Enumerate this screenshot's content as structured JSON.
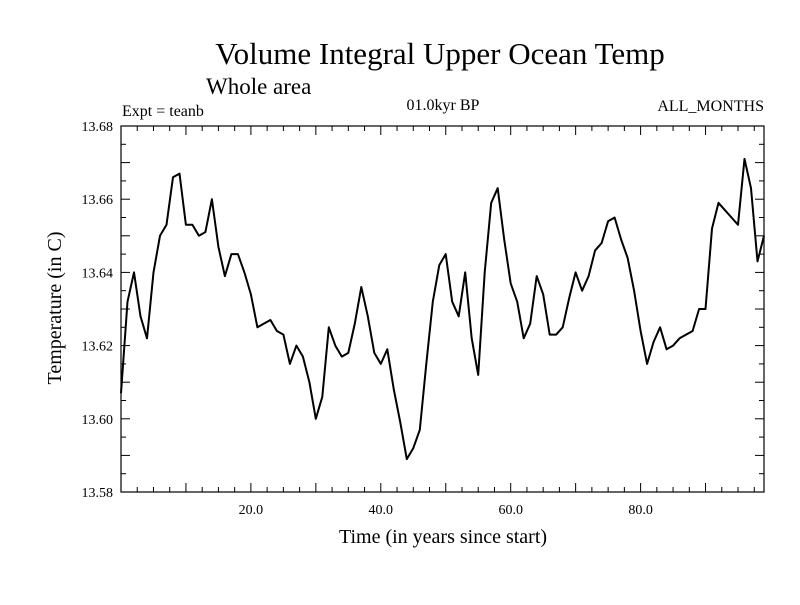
{
  "header": {
    "title": "Volume Integral Upper Ocean Temp",
    "subtitle": "Whole area",
    "experiment": "Expt = teanb",
    "period": "01.0kyr BP",
    "months": "ALL_MONTHS"
  },
  "chart_data": {
    "type": "line",
    "title": "Volume Integral Upper Ocean Temp",
    "subtitle": "Whole area",
    "xlabel": "Time (in years since start)",
    "ylabel": "Temperature (in C)",
    "xlim": [
      0,
      99
    ],
    "ylim": [
      13.58,
      13.68
    ],
    "x_ticks": [
      20,
      40,
      60,
      80
    ],
    "x_tick_labels": [
      "20.0",
      "40.0",
      "60.0",
      "80.0"
    ],
    "y_ticks": [
      13.58,
      13.6,
      13.62,
      13.64,
      13.66,
      13.68
    ],
    "y_tick_labels": [
      "13.58",
      "13.60",
      "13.62",
      "13.64",
      "13.66",
      "13.68"
    ],
    "grid": false,
    "series": [
      {
        "name": "Temperature",
        "x": [
          0,
          1,
          2,
          3,
          4,
          5,
          6,
          7,
          8,
          9,
          10,
          11,
          12,
          13,
          14,
          15,
          16,
          17,
          18,
          19,
          20,
          21,
          22,
          23,
          24,
          25,
          26,
          27,
          28,
          29,
          30,
          31,
          32,
          33,
          34,
          35,
          36,
          37,
          38,
          39,
          40,
          41,
          42,
          43,
          44,
          45,
          46,
          47,
          48,
          49,
          50,
          51,
          52,
          53,
          54,
          55,
          56,
          57,
          58,
          59,
          60,
          61,
          62,
          63,
          64,
          65,
          66,
          67,
          68,
          69,
          70,
          71,
          72,
          73,
          74,
          75,
          76,
          77,
          78,
          79,
          80,
          81,
          82,
          83,
          84,
          85,
          86,
          87,
          88,
          89,
          90,
          91,
          92,
          93,
          94,
          95,
          96,
          97,
          98,
          99
        ],
        "values": [
          13.607,
          13.632,
          13.64,
          13.628,
          13.622,
          13.64,
          13.65,
          13.653,
          13.666,
          13.667,
          13.653,
          13.653,
          13.65,
          13.651,
          13.66,
          13.647,
          13.639,
          13.645,
          13.645,
          13.64,
          13.634,
          13.625,
          13.626,
          13.627,
          13.624,
          13.623,
          13.615,
          13.62,
          13.617,
          13.61,
          13.6,
          13.606,
          13.625,
          13.62,
          13.617,
          13.618,
          13.626,
          13.636,
          13.628,
          13.618,
          13.615,
          13.619,
          13.608,
          13.599,
          13.589,
          13.592,
          13.597,
          13.615,
          13.632,
          13.642,
          13.645,
          13.632,
          13.628,
          13.64,
          13.622,
          13.612,
          13.64,
          13.659,
          13.663,
          13.649,
          13.637,
          13.632,
          13.622,
          13.626,
          13.639,
          13.634,
          13.623,
          13.623,
          13.625,
          13.633,
          13.64,
          13.635,
          13.639,
          13.646,
          13.648,
          13.654,
          13.655,
          13.649,
          13.644,
          13.635,
          13.624,
          13.615,
          13.621,
          13.625,
          13.619,
          13.62,
          13.622,
          13.623,
          13.624,
          13.63,
          13.63,
          13.652,
          13.659,
          13.657,
          13.655,
          13.653,
          13.671,
          13.663,
          13.643,
          13.65
        ]
      }
    ]
  }
}
